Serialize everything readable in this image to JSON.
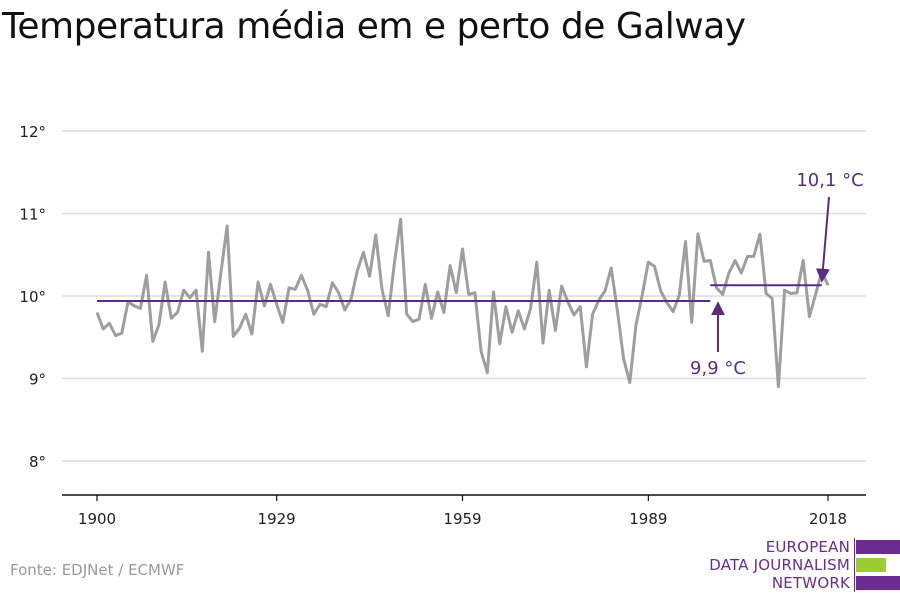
{
  "title": "Temperatura média em e perto de Galway",
  "source": "Fonte: EDJNet / ECMWF",
  "logo": {
    "lines": [
      "EUROPEAN",
      "DATA JOURNALISM",
      "NETWORK"
    ],
    "colors": [
      "#6a2c91",
      "#9acd32",
      "#6a2c91"
    ]
  },
  "chart_data": {
    "type": "line",
    "title": "Temperatura média em e perto de Galway",
    "xlabel": "",
    "ylabel": "",
    "xlim": [
      1900,
      2018
    ],
    "ylim": [
      7.6,
      12.3
    ],
    "y_ticks": [
      8,
      9,
      10,
      11,
      12
    ],
    "y_tick_labels": [
      "8°",
      "9°",
      "10°",
      "11°",
      "12°"
    ],
    "x_ticks": [
      1900,
      1929,
      1959,
      1989,
      2018
    ],
    "x_tick_labels": [
      "1900",
      "1929",
      "1959",
      "1989",
      "2018"
    ],
    "grid": "horizontal",
    "series": [
      {
        "color": "#9e9e9e",
        "x": [
          1900,
          1901,
          1902,
          1903,
          1904,
          1905,
          1906,
          1907,
          1908,
          1909,
          1910,
          1911,
          1912,
          1913,
          1914,
          1915,
          1916,
          1917,
          1918,
          1919,
          1920,
          1921,
          1922,
          1923,
          1924,
          1925,
          1926,
          1927,
          1928,
          1929,
          1930,
          1931,
          1932,
          1933,
          1934,
          1935,
          1936,
          1937,
          1938,
          1939,
          1940,
          1941,
          1942,
          1943,
          1944,
          1945,
          1946,
          1947,
          1948,
          1949,
          1950,
          1951,
          1952,
          1953,
          1954,
          1955,
          1956,
          1957,
          1958,
          1959,
          1960,
          1961,
          1962,
          1963,
          1964,
          1965,
          1966,
          1967,
          1968,
          1969,
          1970,
          1971,
          1972,
          1973,
          1974,
          1975,
          1976,
          1977,
          1978,
          1979,
          1980,
          1981,
          1982,
          1983,
          1984,
          1985,
          1986,
          1987,
          1988,
          1989,
          1990,
          1991,
          1992,
          1993,
          1994,
          1995,
          1996,
          1997,
          1998,
          1999,
          2000,
          2001,
          2002,
          2003,
          2004,
          2005,
          2006,
          2007,
          2008,
          2009,
          2010,
          2011,
          2012,
          2013,
          2014,
          2015,
          2016,
          2017,
          2018
        ],
        "values": [
          9.8,
          9.6,
          9.67,
          9.52,
          9.55,
          9.93,
          9.88,
          9.85,
          10.25,
          9.45,
          9.65,
          10.17,
          9.73,
          9.8,
          10.07,
          9.98,
          10.07,
          9.33,
          10.53,
          9.69,
          10.28,
          10.85,
          9.51,
          9.61,
          9.78,
          9.54,
          10.17,
          9.88,
          10.14,
          9.9,
          9.68,
          10.1,
          10.08,
          10.25,
          10.07,
          9.78,
          9.9,
          9.87,
          10.16,
          10.04,
          9.83,
          9.96,
          10.3,
          10.53,
          10.24,
          10.74,
          10.08,
          9.76,
          10.4,
          10.93,
          9.78,
          9.69,
          9.72,
          10.14,
          9.73,
          10.05,
          9.8,
          10.37,
          10.04,
          10.57,
          10.02,
          10.04,
          9.33,
          9.07,
          10.05,
          9.42,
          9.87,
          9.56,
          9.82,
          9.6,
          9.85,
          10.41,
          9.43,
          10.07,
          9.58,
          10.12,
          9.93,
          9.77,
          9.87,
          9.14,
          9.78,
          9.95,
          10.06,
          10.34,
          9.82,
          9.24,
          8.95,
          9.65,
          10.01,
          10.41,
          10.36,
          10.06,
          9.92,
          9.81,
          10.01,
          10.66,
          9.68,
          10.75,
          10.42,
          10.43,
          10.1,
          10.02,
          10.28,
          10.43,
          10.28,
          10.48,
          10.48,
          10.75,
          10.03,
          9.97,
          8.9,
          10.07,
          10.03,
          10.04,
          10.43,
          9.75,
          10.02,
          10.3,
          10.13
        ]
      }
    ],
    "averages": [
      {
        "label": "9,9 °C",
        "value": 9.94,
        "from": 1900,
        "to": 1999,
        "color": "#5a2d82"
      },
      {
        "label": "10,1 °C",
        "value": 10.13,
        "from": 1999,
        "to": 2017,
        "color": "#5a2d82"
      }
    ]
  }
}
